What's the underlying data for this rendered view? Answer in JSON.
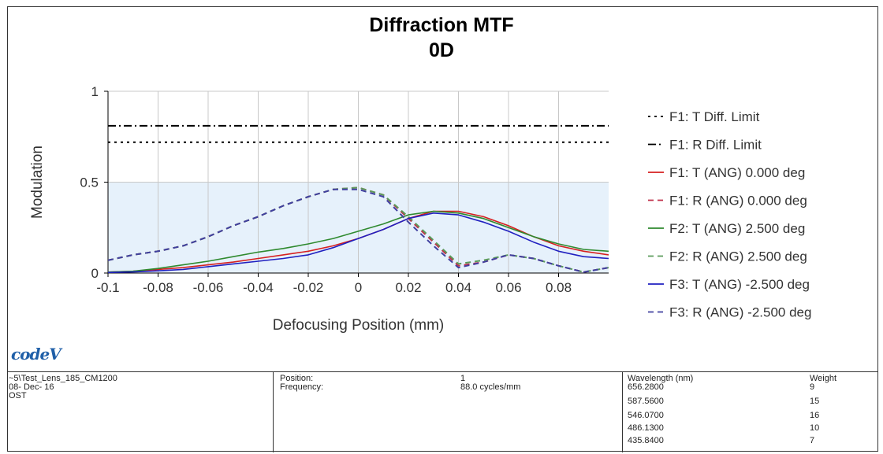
{
  "chart_data": {
    "type": "line",
    "title": "Diffraction MTF",
    "subtitle": "0D",
    "xlabel": "Defocusing Position (mm)",
    "ylabel": "Modulation",
    "xlim": [
      -0.1,
      0.1
    ],
    "ylim": [
      0,
      1
    ],
    "x_ticks": [
      "-0.1",
      "-0.08",
      "-0.06",
      "-0.04",
      "-0.02",
      "0",
      "0.02",
      "0.04",
      "0.06",
      "0.08"
    ],
    "y_ticks": [
      "0",
      "0.5",
      "1"
    ],
    "grid": true,
    "legend_position": "right",
    "x": [
      -0.1,
      -0.09,
      -0.08,
      -0.07,
      -0.06,
      -0.05,
      -0.04,
      -0.03,
      -0.02,
      -0.01,
      0,
      0.01,
      0.02,
      0.03,
      0.04,
      0.05,
      0.06,
      0.07,
      0.08,
      0.09,
      0.1
    ],
    "series": [
      {
        "name": "F1: T Diff. Limit",
        "color": "#000000",
        "dash": "dotted",
        "values": [
          0.72,
          0.72,
          0.72,
          0.72,
          0.72,
          0.72,
          0.72,
          0.72,
          0.72,
          0.72,
          0.72,
          0.72,
          0.72,
          0.72,
          0.72,
          0.72,
          0.72,
          0.72,
          0.72,
          0.72,
          0.72
        ]
      },
      {
        "name": "F1: R Diff. Limit",
        "color": "#000000",
        "dash": "dashdot",
        "values": [
          0.81,
          0.81,
          0.81,
          0.81,
          0.81,
          0.81,
          0.81,
          0.81,
          0.81,
          0.81,
          0.81,
          0.81,
          0.81,
          0.81,
          0.81,
          0.81,
          0.81,
          0.81,
          0.81,
          0.81,
          0.81
        ]
      },
      {
        "name": "F1: T (ANG) 0.000 deg",
        "color": "#d62020",
        "dash": "solid",
        "values": [
          0.005,
          0.01,
          0.02,
          0.03,
          0.045,
          0.06,
          0.08,
          0.1,
          0.12,
          0.15,
          0.19,
          0.24,
          0.3,
          0.34,
          0.34,
          0.31,
          0.26,
          0.2,
          0.15,
          0.12,
          0.1
        ]
      },
      {
        "name": "F1: R (ANG) 0.000 deg",
        "color": "#c0304a",
        "dash": "dashed",
        "values": [
          0.07,
          0.1,
          0.12,
          0.15,
          0.2,
          0.26,
          0.31,
          0.37,
          0.42,
          0.46,
          0.47,
          0.43,
          0.3,
          0.17,
          0.04,
          0.06,
          0.1,
          0.08,
          0.04,
          0.005,
          0.03
        ]
      },
      {
        "name": "F2: T (ANG) 2.500 deg",
        "color": "#2f8a2f",
        "dash": "solid",
        "values": [
          0.005,
          0.01,
          0.025,
          0.045,
          0.065,
          0.09,
          0.115,
          0.135,
          0.16,
          0.19,
          0.23,
          0.27,
          0.32,
          0.34,
          0.33,
          0.3,
          0.25,
          0.2,
          0.16,
          0.13,
          0.12
        ]
      },
      {
        "name": "F2: R (ANG) 2.500 deg",
        "color": "#5a9a5a",
        "dash": "dashed",
        "values": [
          0.07,
          0.1,
          0.12,
          0.15,
          0.2,
          0.26,
          0.31,
          0.37,
          0.42,
          0.46,
          0.47,
          0.43,
          0.31,
          0.18,
          0.05,
          0.07,
          0.1,
          0.08,
          0.04,
          0.005,
          0.03
        ]
      },
      {
        "name": "F3: T (ANG) -2.500 deg",
        "color": "#2020c0",
        "dash": "solid",
        "values": [
          0.003,
          0.006,
          0.012,
          0.02,
          0.035,
          0.05,
          0.065,
          0.08,
          0.1,
          0.14,
          0.19,
          0.24,
          0.3,
          0.33,
          0.32,
          0.28,
          0.23,
          0.17,
          0.12,
          0.09,
          0.08
        ]
      },
      {
        "name": "F3: R (ANG) -2.500 deg",
        "color": "#4040a0",
        "dash": "dashed",
        "values": [
          0.07,
          0.1,
          0.12,
          0.15,
          0.2,
          0.26,
          0.31,
          0.37,
          0.42,
          0.46,
          0.46,
          0.42,
          0.28,
          0.15,
          0.03,
          0.06,
          0.1,
          0.08,
          0.04,
          0.005,
          0.03
        ]
      }
    ]
  },
  "logo_text": "codeV",
  "info": {
    "file": "~5\\Test_Lens_185_CM1200",
    "date": "08- Dec- 16",
    "ost": "OST",
    "position_label": "Position:",
    "frequency_label": "Frequency:",
    "position_value": "1",
    "frequency_value": "88.0 cycles/mm",
    "wavelength_header": "Wavelength (nm)",
    "weight_header": "Weight",
    "wavelengths": [
      {
        "wavelength": "656.2800",
        "weight": "9"
      },
      {
        "wavelength": "587.5600",
        "weight": "15"
      },
      {
        "wavelength": "546.0700",
        "weight": "16"
      },
      {
        "wavelength": "486.1300",
        "weight": "10"
      },
      {
        "wavelength": "435.8400",
        "weight": "7"
      }
    ]
  }
}
